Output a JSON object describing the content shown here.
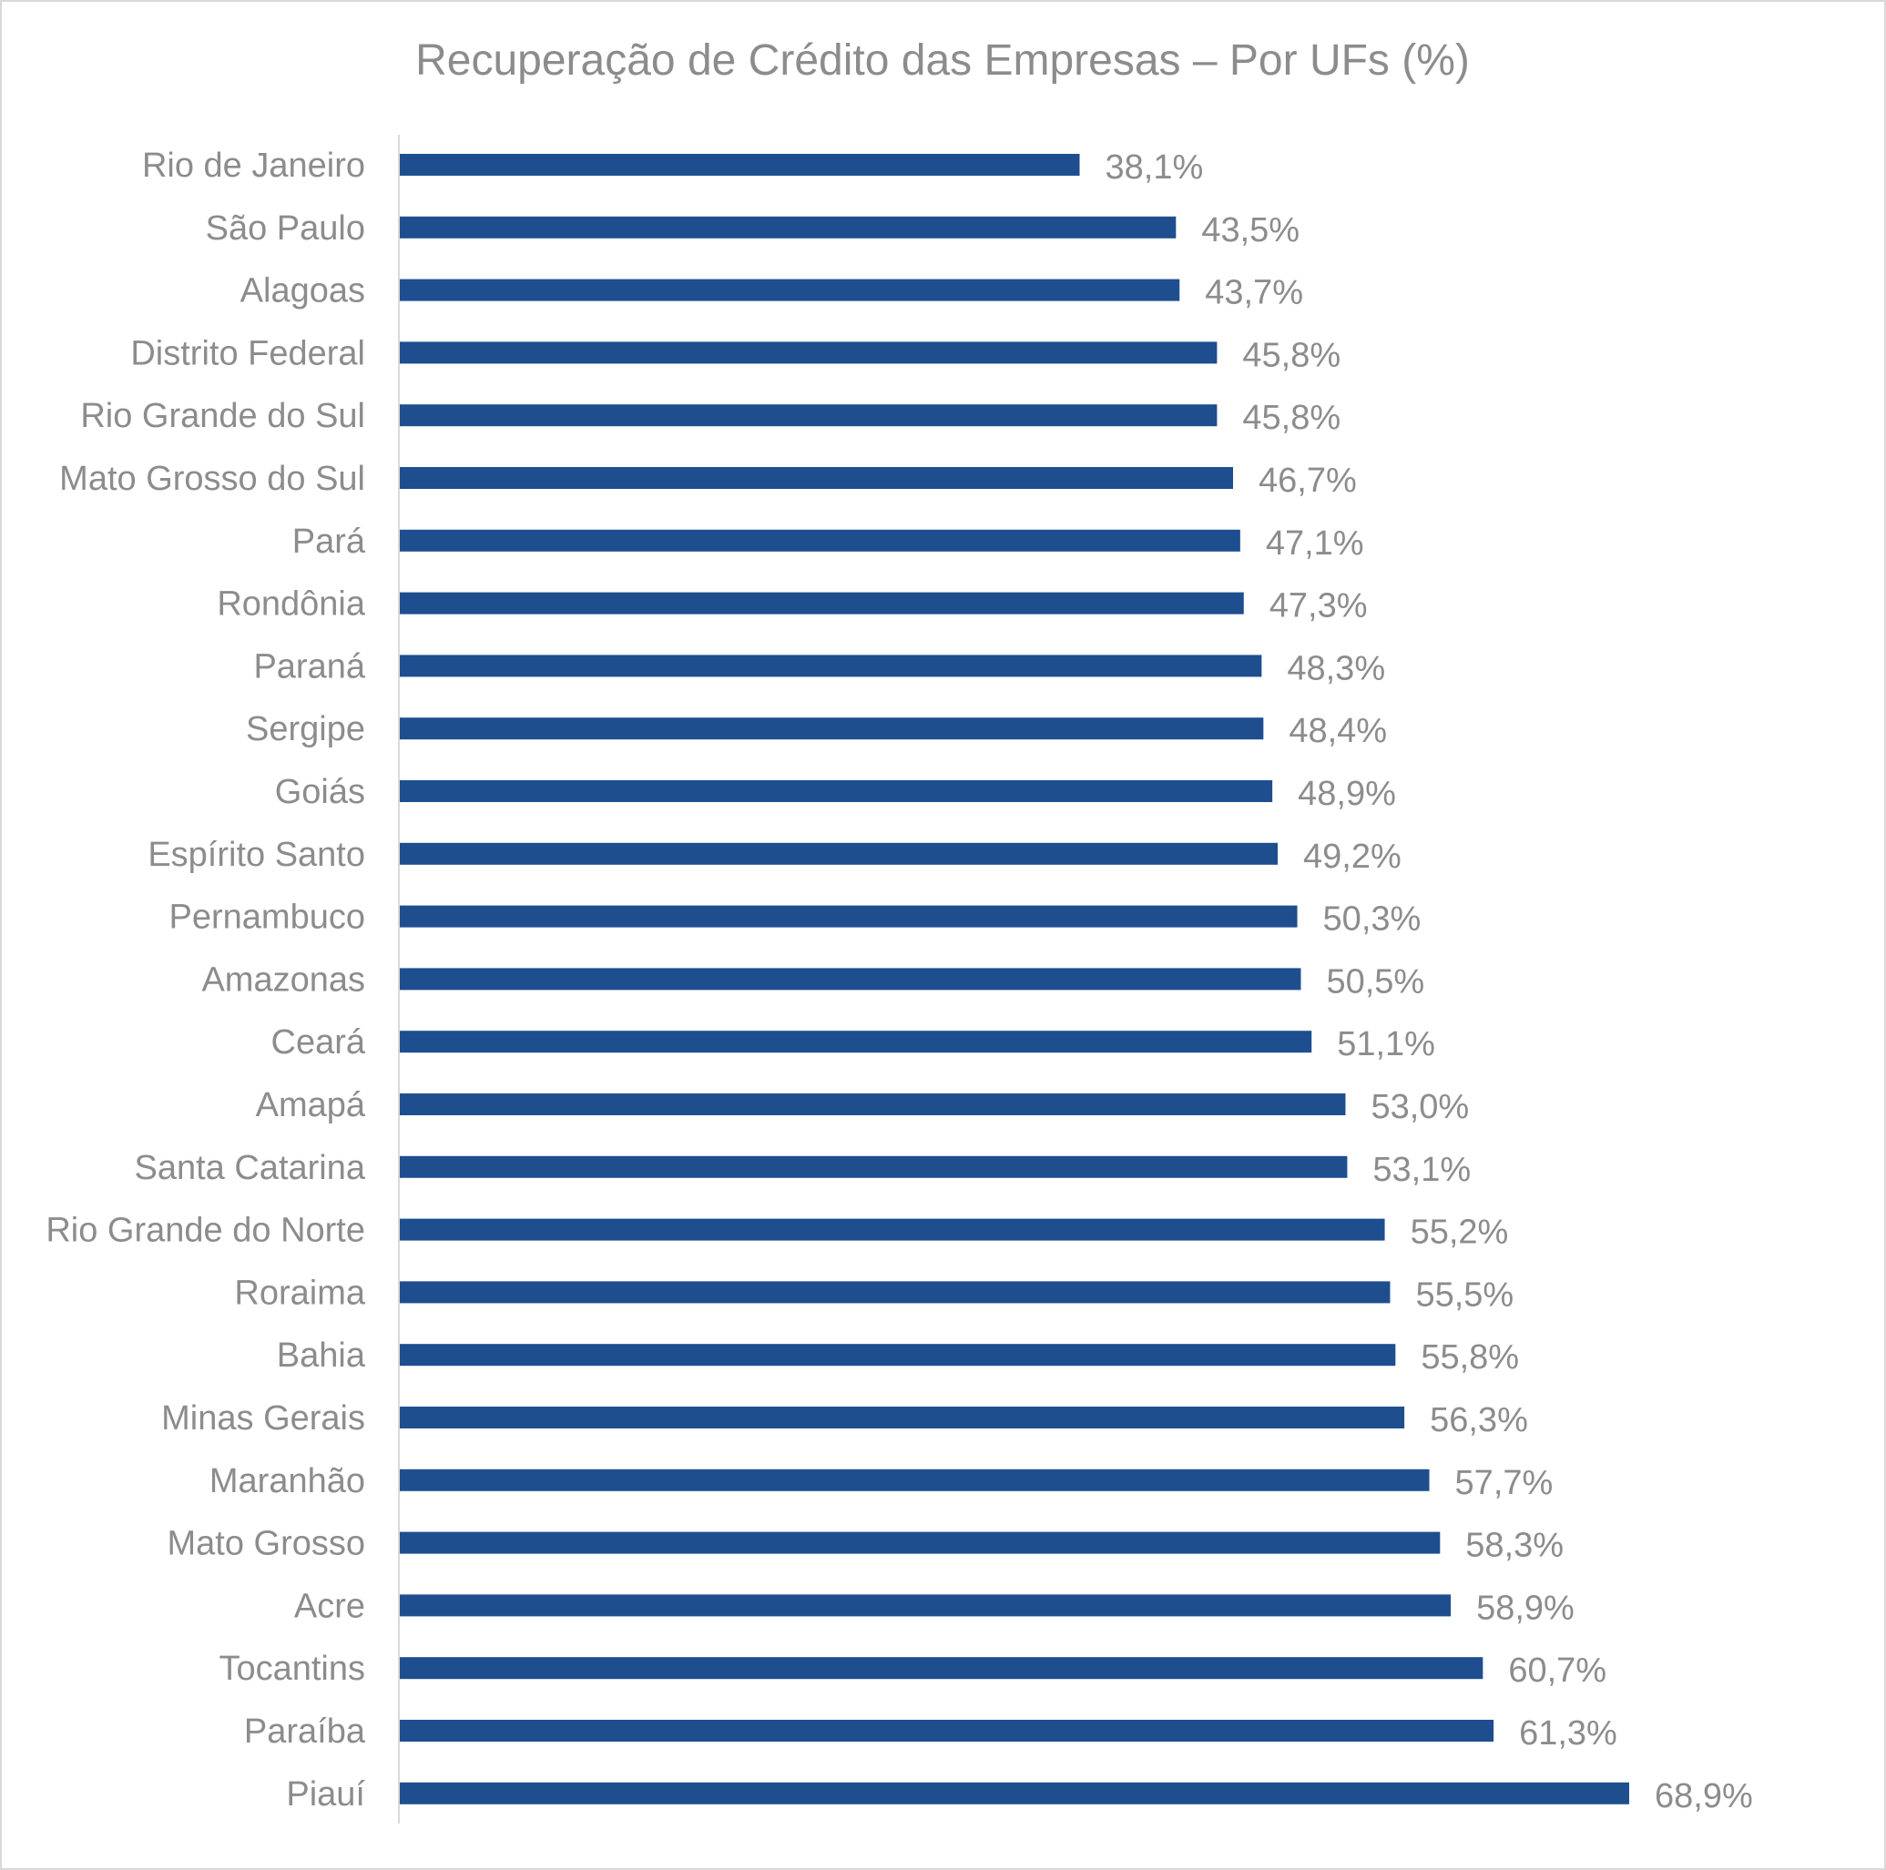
{
  "chart_data": {
    "type": "bar",
    "orientation": "horizontal",
    "title": "Recuperação de Crédito das Empresas – Por UFs (%)",
    "xlabel": "",
    "ylabel": "",
    "xlim": [
      0,
      70
    ],
    "grid": false,
    "legend": "none",
    "bar_color": "#1f4e8f",
    "text_color": "#8c8c8c",
    "axis_color": "#d9d9d9",
    "categories": [
      "Rio de Janeiro",
      "São Paulo",
      "Alagoas",
      "Distrito Federal",
      "Rio Grande do Sul",
      "Mato Grosso do Sul",
      "Pará",
      "Rondônia",
      "Paraná",
      "Sergipe",
      "Goiás",
      "Espírito Santo",
      "Pernambuco",
      "Amazonas",
      "Ceará",
      "Amapá",
      "Santa Catarina",
      "Rio Grande do Norte",
      "Roraima",
      "Bahia",
      "Minas Gerais",
      "Maranhão",
      "Mato Grosso",
      "Acre",
      "Tocantins",
      "Paraíba",
      "Piauí"
    ],
    "values": [
      38.1,
      43.5,
      43.7,
      45.8,
      45.8,
      46.7,
      47.1,
      47.3,
      48.3,
      48.4,
      48.9,
      49.2,
      50.3,
      50.5,
      51.1,
      53.0,
      53.1,
      55.2,
      55.5,
      55.8,
      56.3,
      57.7,
      58.3,
      58.9,
      60.7,
      61.3,
      68.9
    ],
    "data_labels": [
      "38,1%",
      "43,5%",
      "43,7%",
      "45,8%",
      "45,8%",
      "46,7%",
      "47,1%",
      "47,3%",
      "48,3%",
      "48,4%",
      "48,9%",
      "49,2%",
      "50,3%",
      "50,5%",
      "51,1%",
      "53,0%",
      "53,1%",
      "55,2%",
      "55,5%",
      "55,8%",
      "56,3%",
      "57,7%",
      "58,3%",
      "58,9%",
      "60,7%",
      "61,3%",
      "68,9%"
    ]
  }
}
